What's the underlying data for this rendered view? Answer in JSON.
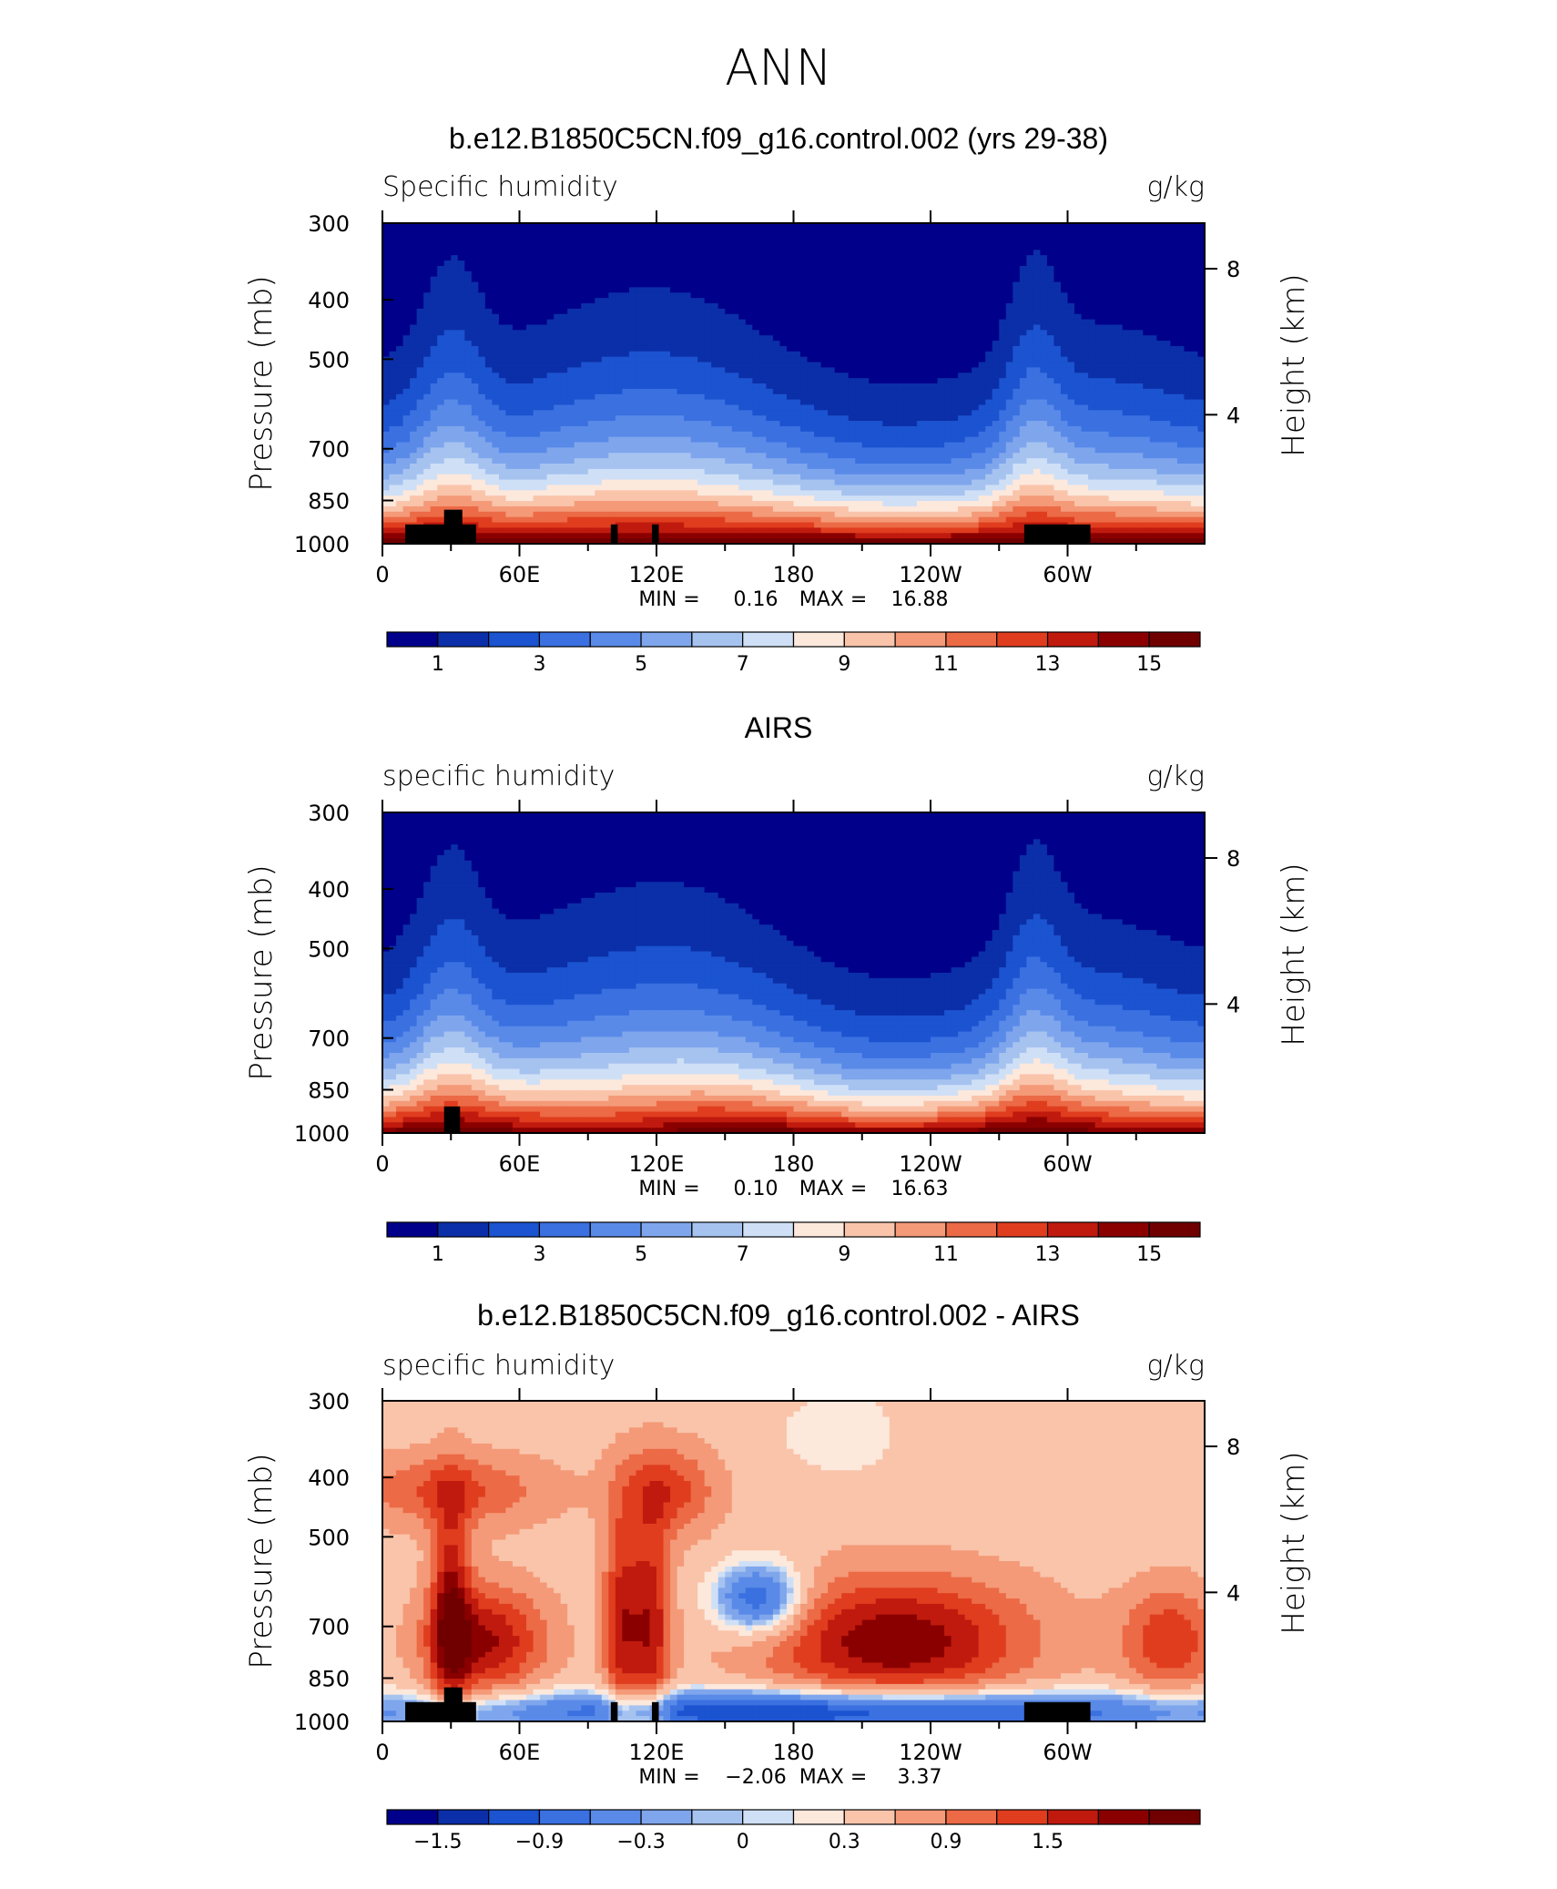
{
  "figure": {
    "title": "ANN"
  },
  "colors": {
    "abs_scale": [
      "#00008a",
      "#0b2fa8",
      "#1b53d0",
      "#3a70e0",
      "#5a8ae8",
      "#7fa6ec",
      "#a6c3f0",
      "#cfe0f6",
      "#fde8dc",
      "#f9c4aa",
      "#f49a78",
      "#ec6a46",
      "#e03d1f",
      "#c01a0e",
      "#8a0000",
      "#700000"
    ],
    "diff_scale": [
      "#00008a",
      "#0b2fa8",
      "#1b53d0",
      "#3a70e0",
      "#5a8ae8",
      "#7fa6ec",
      "#a6c3f0",
      "#cfe0f6",
      "#fde8dc",
      "#f9c4aa",
      "#f49a78",
      "#ec6a46",
      "#e03d1f",
      "#c01a0e",
      "#8a0000",
      "#700000"
    ],
    "topography": "#000000"
  },
  "chart_data": [
    {
      "type": "heatmap",
      "title": "b.e12.B1850C5CN.f09_g16.control.002 (yrs 29-38)",
      "variable_label": "Specific humidity",
      "units": "g/kg",
      "ylabel": "Pressure (mb)",
      "ylabel_right": "Height (km)",
      "yticks": [
        "300",
        "400",
        "500",
        "700",
        "850",
        "1000"
      ],
      "yticks_right": [
        "8",
        "4"
      ],
      "xticks": [
        "0",
        "60E",
        "120E",
        "180",
        "120W",
        "60W"
      ],
      "min_label": "MIN =",
      "min": "0.16",
      "max_label": "MAX =",
      "max": "16.88",
      "colorbar_labels": [
        "1",
        "3",
        "5",
        "7",
        "9",
        "11",
        "13",
        "15"
      ],
      "colorbar_levels": 16,
      "field": "abs_model"
    },
    {
      "type": "heatmap",
      "title": "AIRS",
      "variable_label": "specific humidity",
      "units": "g/kg",
      "ylabel": "Pressure (mb)",
      "ylabel_right": "Height (km)",
      "yticks": [
        "300",
        "400",
        "500",
        "700",
        "850",
        "1000"
      ],
      "yticks_right": [
        "8",
        "4"
      ],
      "xticks": [
        "0",
        "60E",
        "120E",
        "180",
        "120W",
        "60W"
      ],
      "min_label": "MIN =",
      "min": "0.10",
      "max_label": "MAX =",
      "max": "16.63",
      "colorbar_labels": [
        "1",
        "3",
        "5",
        "7",
        "9",
        "11",
        "13",
        "15"
      ],
      "colorbar_levels": 16,
      "field": "abs_obs"
    },
    {
      "type": "heatmap",
      "title": "b.e12.B1850C5CN.f09_g16.control.002 - AIRS",
      "variable_label": "specific humidity",
      "units": "g/kg",
      "ylabel": "Pressure (mb)",
      "ylabel_right": "Height (km)",
      "yticks": [
        "300",
        "400",
        "500",
        "700",
        "850",
        "1000"
      ],
      "yticks_right": [
        "8",
        "4"
      ],
      "xticks": [
        "0",
        "60E",
        "120E",
        "180",
        "120W",
        "60W"
      ],
      "min_label": "MIN =",
      "min": "−2.06",
      "max_label": "MAX =",
      "max": "3.37",
      "colorbar_labels": [
        "−1.5",
        "−0.9",
        "−0.3",
        "0",
        "0.3",
        "0.9",
        "1.5"
      ],
      "colorbar_levels": 16,
      "field": "diff"
    }
  ]
}
